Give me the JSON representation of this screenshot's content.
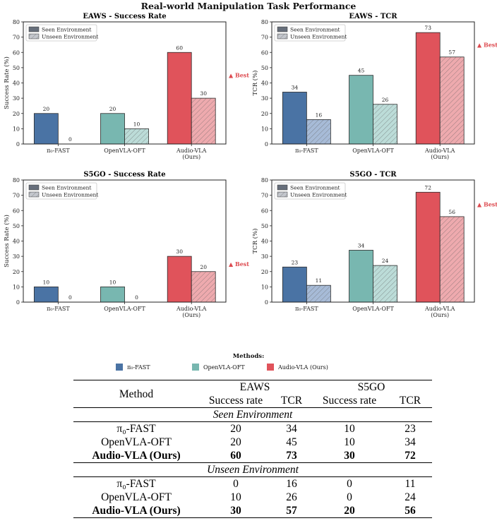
{
  "title": "Real-world Manipulation Task Performance",
  "colors": {
    "pi0": "#4a73a4",
    "openvla": "#78b7b0",
    "audio": "#e0535b",
    "pi0_light": "#a7bbd7",
    "openvla_light": "#bcdcd8",
    "audio_light": "#eeaaae",
    "best": "#dd4a4f",
    "legend_seen": "#676f7b",
    "legend_unseen": "#c3c6cc"
  },
  "legend": {
    "seen": "Seen Environment",
    "unseen": "Unseen Environment"
  },
  "best_label": "▲ Best",
  "chart_data": [
    {
      "type": "bar",
      "title": "EAWS - Success Rate",
      "ylabel": "Success Rate (%)",
      "ylim": [
        0,
        80
      ],
      "yticks": [
        0,
        10,
        20,
        30,
        40,
        50,
        60,
        70,
        80
      ],
      "categories": [
        [
          "π₀-FAST"
        ],
        [
          "OpenVLA-OFT"
        ],
        [
          "Audio-VLA",
          "(Ours)"
        ]
      ],
      "series": [
        {
          "name": "Seen Environment",
          "values": [
            20,
            20,
            60
          ]
        },
        {
          "name": "Unseen Environment",
          "values": [
            0,
            10,
            30
          ]
        }
      ],
      "best_marker_at": 45,
      "legend_position": "top-left"
    },
    {
      "type": "bar",
      "title": "EAWS - TCR",
      "ylabel": "TCR (%)",
      "ylim": [
        0,
        80
      ],
      "yticks": [
        0,
        10,
        20,
        30,
        40,
        50,
        60,
        70,
        80
      ],
      "categories": [
        [
          "π₀-FAST"
        ],
        [
          "OpenVLA-OFT"
        ],
        [
          "Audio-VLA",
          "(Ours)"
        ]
      ],
      "series": [
        {
          "name": "Seen Environment",
          "values": [
            34,
            45,
            73
          ]
        },
        {
          "name": "Unseen Environment",
          "values": [
            16,
            26,
            57
          ]
        }
      ],
      "best_marker_at": 65,
      "legend_position": "top-left"
    },
    {
      "type": "bar",
      "title": "S5GO - Success Rate",
      "ylabel": "Success Rate (%)",
      "ylim": [
        0,
        80
      ],
      "yticks": [
        0,
        10,
        20,
        30,
        40,
        50,
        60,
        70,
        80
      ],
      "categories": [
        [
          "π₀-FAST"
        ],
        [
          "OpenVLA-OFT"
        ],
        [
          "Audio-VLA",
          "(Ours)"
        ]
      ],
      "series": [
        {
          "name": "Seen Environment",
          "values": [
            10,
            10,
            30
          ]
        },
        {
          "name": "Unseen Environment",
          "values": [
            0,
            0,
            20
          ]
        }
      ],
      "best_marker_at": 25,
      "legend_position": "top-left"
    },
    {
      "type": "bar",
      "title": "S5GO - TCR",
      "ylabel": "TCR (%)",
      "ylim": [
        0,
        80
      ],
      "yticks": [
        0,
        10,
        20,
        30,
        40,
        50,
        60,
        70,
        80
      ],
      "categories": [
        [
          "π₀-FAST"
        ],
        [
          "OpenVLA-OFT"
        ],
        [
          "Audio-VLA",
          "(Ours)"
        ]
      ],
      "series": [
        {
          "name": "Seen Environment",
          "values": [
            23,
            34,
            72
          ]
        },
        {
          "name": "Unseen Environment",
          "values": [
            11,
            24,
            56
          ]
        }
      ],
      "best_marker_at": 64,
      "legend_position": "top-left"
    }
  ],
  "methods_legend": {
    "title": "Methods:",
    "items": [
      {
        "label": "π₀-FAST",
        "color": "#4a73a4"
      },
      {
        "label": "OpenVLA-OFT",
        "color": "#78b7b0"
      },
      {
        "label": "Audio-VLA (Ours)",
        "color": "#e0535b"
      }
    ]
  },
  "table": {
    "method_header": "Method",
    "group_eaws": "EAWS",
    "group_s5go": "S5GO",
    "col_success_rate": "Success rate",
    "col_tcr": "TCR",
    "section_seen": "Seen Environment",
    "section_unseen": "Unseen Environment",
    "seen_rows": [
      {
        "method": "π₀-FAST",
        "eaws_sr": "20",
        "eaws_tcr": "34",
        "s5go_sr": "10",
        "s5go_tcr": "23"
      },
      {
        "method": "OpenVLA-OFT",
        "eaws_sr": "20",
        "eaws_tcr": "45",
        "s5go_sr": "10",
        "s5go_tcr": "34"
      },
      {
        "method": "Audio-VLA (Ours)",
        "eaws_sr": "60",
        "eaws_tcr": "73",
        "s5go_sr": "30",
        "s5go_tcr": "72"
      }
    ],
    "unseen_rows": [
      {
        "method": "π₀-FAST",
        "eaws_sr": "0",
        "eaws_tcr": "16",
        "s5go_sr": "0",
        "s5go_tcr": "11"
      },
      {
        "method": "OpenVLA-OFT",
        "eaws_sr": "10",
        "eaws_tcr": "26",
        "s5go_sr": "0",
        "s5go_tcr": "24"
      },
      {
        "method": "Audio-VLA (Ours)",
        "eaws_sr": "30",
        "eaws_tcr": "57",
        "s5go_sr": "20",
        "s5go_tcr": "56"
      }
    ]
  }
}
